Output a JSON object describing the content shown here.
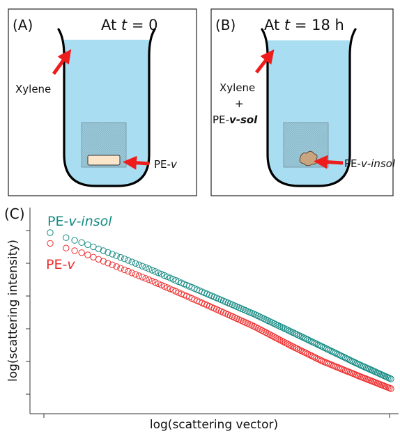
{
  "panel_a": {
    "letter": "(A)",
    "title_prefix": "At ",
    "title_var": "t",
    "title_suffix": " = 0",
    "solvent_label": "Xylene",
    "sample_label_prefix": "PE-",
    "sample_label_var": "v"
  },
  "panel_b": {
    "letter": "(B)",
    "title_prefix": "At ",
    "title_var": "t",
    "title_suffix": " = 18 h",
    "solvent_line1": "Xylene",
    "solvent_line2": "+",
    "solvent_line3_prefix": "PE-",
    "solvent_line3_suffix": "v-sol",
    "sample_label_prefix": "PE-",
    "sample_label_suffix": "v-insol"
  },
  "panel_c": {
    "letter": "(C)",
    "xlabel": "log(scattering vector)",
    "ylabel": "log(scattering intensity)"
  },
  "colors": {
    "xylene": "#A9DEF2",
    "arrow": "#EE1C1C",
    "sample_a": "#FCE6CB",
    "sample_b": "#C8A57E",
    "insol_series": "#138A83",
    "v_series": "#EE2C2C"
  },
  "chart_data": {
    "type": "scatter",
    "xlabel": "log(scattering vector)",
    "ylabel": "log(scattering intensity)",
    "x_ticks_shown": false,
    "y_ticks_shown": false,
    "grid": false,
    "legend": "top-left (colored labels)",
    "series": [
      {
        "name": "PE-v-insol",
        "color": "#138A83",
        "x": [
          0.0,
          0.1,
          0.2,
          0.3,
          0.4,
          0.5,
          0.6,
          0.7,
          0.8,
          0.9,
          1.0
        ],
        "y": [
          0.8,
          0.745,
          0.678,
          0.607,
          0.531,
          0.456,
          0.381,
          0.298,
          0.214,
          0.129,
          0.05
        ]
      },
      {
        "name": "PE-v",
        "color": "#EE2C2C",
        "x": [
          0.0,
          0.1,
          0.2,
          0.3,
          0.4,
          0.5,
          0.6,
          0.7,
          0.8,
          0.9,
          1.0
        ],
        "y": [
          0.745,
          0.693,
          0.622,
          0.551,
          0.475,
          0.397,
          0.318,
          0.226,
          0.14,
          0.069,
          0.0
        ]
      }
    ]
  }
}
